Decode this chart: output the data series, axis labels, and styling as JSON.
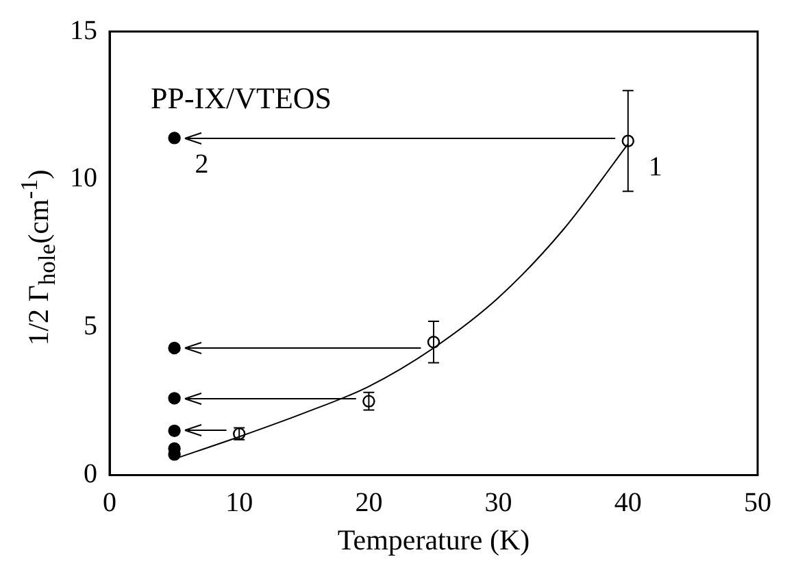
{
  "chart_data": {
    "type": "scatter",
    "xlabel": "Temperature (K)",
    "ylabel": "1/2 Γ$_{hole}$(cm$^{-1}$)",
    "xlim": [
      0,
      50
    ],
    "xticks": [
      0,
      10,
      20,
      30,
      40,
      50
    ],
    "ylim": [
      0,
      15
    ],
    "yticks": [
      0,
      5,
      10,
      15
    ],
    "grid": false,
    "legend": false,
    "series": [
      {
        "marker": "circle",
        "color": "#000000",
        "x": [
          40,
          25,
          20,
          10
        ],
        "values": [
          11.3,
          4.5,
          2.5,
          1.4
        ],
        "errors": [
          [
            9.6,
            13.0
          ],
          [
            3.8,
            5.2
          ],
          [
            2.2,
            2.8
          ],
          [
            1.2,
            1.6
          ]
        ]
      },
      {
        "marker": "circle",
        "color": "#000000",
        "x": [
          5,
          5,
          5,
          5,
          5,
          5
        ],
        "values": [
          11.4,
          4.3,
          2.6,
          1.5,
          0.9,
          0.7
        ]
      },
      {
        "type": "line",
        "marker": "none",
        "color": "#000000",
        "x": [
          5,
          10,
          15,
          20,
          25,
          30,
          35,
          40
        ],
        "values": [
          0.55,
          1.3,
          2.1,
          3.0,
          4.3,
          6.0,
          8.3,
          11.2
        ]
      }
    ],
    "annotations": [
      "PP-IX/VTEOS",
      {
        "text": "1",
        "x": 40,
        "y": 11.3
      },
      {
        "text": "2",
        "x": 5,
        "y": 11.4
      }
    ]
  }
}
